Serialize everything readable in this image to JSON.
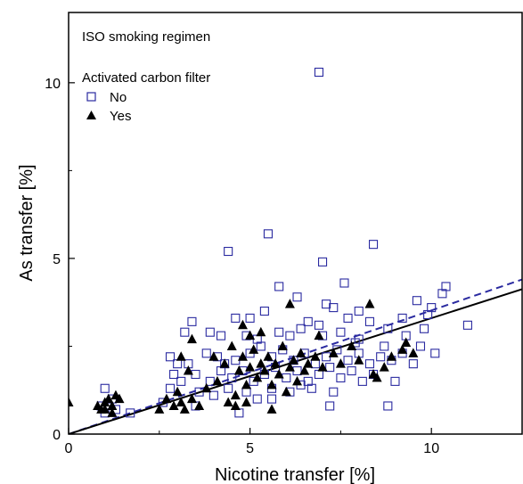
{
  "chart_data": {
    "type": "scatter",
    "xlabel": "Nicotine transfer [%]",
    "ylabel": "As transfer [%]",
    "xlim": [
      0,
      12.5
    ],
    "ylim": [
      0,
      12
    ],
    "x_ticks": [
      0,
      5,
      10
    ],
    "y_ticks": [
      0,
      5,
      10
    ],
    "x_tick_labels": [
      "0",
      "5",
      "10"
    ],
    "y_tick_labels": [
      "0",
      "5",
      "10"
    ],
    "grid": false,
    "legend_position": "top-left",
    "annotation": "ISO smoking regimen",
    "legend_title": "Activated carbon filter",
    "series": [
      {
        "name": "No",
        "marker": "open-square",
        "color": "#2a2aa0",
        "points": [
          [
            6.9,
            10.3
          ],
          [
            8.4,
            5.4
          ],
          [
            5.5,
            5.7
          ],
          [
            4.4,
            5.2
          ],
          [
            7.0,
            4.9
          ],
          [
            5.8,
            4.2
          ],
          [
            7.6,
            4.3
          ],
          [
            10.4,
            4.2
          ],
          [
            10.3,
            4.0
          ],
          [
            9.6,
            3.8
          ],
          [
            6.3,
            3.9
          ],
          [
            7.1,
            3.7
          ],
          [
            8.0,
            3.5
          ],
          [
            7.3,
            3.6
          ],
          [
            5.4,
            3.5
          ],
          [
            5.0,
            3.3
          ],
          [
            4.6,
            3.3
          ],
          [
            3.4,
            3.2
          ],
          [
            6.6,
            3.2
          ],
          [
            6.9,
            3.1
          ],
          [
            7.7,
            3.3
          ],
          [
            8.3,
            3.2
          ],
          [
            9.2,
            3.3
          ],
          [
            9.9,
            3.4
          ],
          [
            10.0,
            3.6
          ],
          [
            11.0,
            3.1
          ],
          [
            9.8,
            3.0
          ],
          [
            3.2,
            2.9
          ],
          [
            3.9,
            2.9
          ],
          [
            4.2,
            2.8
          ],
          [
            4.9,
            2.8
          ],
          [
            5.2,
            2.7
          ],
          [
            5.8,
            2.9
          ],
          [
            6.1,
            2.8
          ],
          [
            6.4,
            3.0
          ],
          [
            7.0,
            2.8
          ],
          [
            7.5,
            2.9
          ],
          [
            8.0,
            2.7
          ],
          [
            8.8,
            3.0
          ],
          [
            9.3,
            2.8
          ],
          [
            9.7,
            2.5
          ],
          [
            10.1,
            2.3
          ],
          [
            2.8,
            2.2
          ],
          [
            3.0,
            2.0
          ],
          [
            3.3,
            2.0
          ],
          [
            3.8,
            2.3
          ],
          [
            4.1,
            2.2
          ],
          [
            4.3,
            2.0
          ],
          [
            4.6,
            2.1
          ],
          [
            5.0,
            2.3
          ],
          [
            5.3,
            2.5
          ],
          [
            5.6,
            2.2
          ],
          [
            5.9,
            2.4
          ],
          [
            6.2,
            2.1
          ],
          [
            6.5,
            2.3
          ],
          [
            6.8,
            2.0
          ],
          [
            7.1,
            2.2
          ],
          [
            7.4,
            2.4
          ],
          [
            7.7,
            2.1
          ],
          [
            8.0,
            2.3
          ],
          [
            8.3,
            2.0
          ],
          [
            8.6,
            2.2
          ],
          [
            8.9,
            2.1
          ],
          [
            9.2,
            2.3
          ],
          [
            9.5,
            2.0
          ],
          [
            2.9,
            1.7
          ],
          [
            3.1,
            1.5
          ],
          [
            3.5,
            1.7
          ],
          [
            3.9,
            1.5
          ],
          [
            4.2,
            1.8
          ],
          [
            4.5,
            1.6
          ],
          [
            4.8,
            1.8
          ],
          [
            5.1,
            1.5
          ],
          [
            5.4,
            1.7
          ],
          [
            5.7,
            1.9
          ],
          [
            6.0,
            1.6
          ],
          [
            6.3,
            1.8
          ],
          [
            6.6,
            1.5
          ],
          [
            6.9,
            1.7
          ],
          [
            7.2,
            1.9
          ],
          [
            7.5,
            1.6
          ],
          [
            7.8,
            1.8
          ],
          [
            8.1,
            1.5
          ],
          [
            8.4,
            1.7
          ],
          [
            2.8,
            1.3
          ],
          [
            3.6,
            1.2
          ],
          [
            4.0,
            1.1
          ],
          [
            4.4,
            1.3
          ],
          [
            4.9,
            1.2
          ],
          [
            5.2,
            1.0
          ],
          [
            5.6,
            1.3
          ],
          [
            6.1,
            1.2
          ],
          [
            6.7,
            1.3
          ],
          [
            7.3,
            1.2
          ],
          [
            9.0,
            1.5
          ],
          [
            1.0,
            1.3
          ],
          [
            1.2,
            1.0
          ],
          [
            0.9,
            0.8
          ],
          [
            1.3,
            0.7
          ],
          [
            1.0,
            0.6
          ],
          [
            1.7,
            0.6
          ],
          [
            3.5,
            0.8
          ],
          [
            7.2,
            0.8
          ],
          [
            8.8,
            0.8
          ],
          [
            2.6,
            0.9
          ],
          [
            4.7,
            0.6
          ],
          [
            5.6,
            1.0
          ],
          [
            6.4,
            1.4
          ],
          [
            7.9,
            2.6
          ],
          [
            8.7,
            2.5
          ]
        ]
      },
      {
        "name": "Yes",
        "marker": "filled-triangle",
        "color": "#000000",
        "points": [
          [
            0.0,
            0.9
          ],
          [
            0.8,
            0.8
          ],
          [
            0.9,
            0.7
          ],
          [
            1.0,
            0.9
          ],
          [
            1.1,
            1.0
          ],
          [
            1.2,
            0.8
          ],
          [
            1.3,
            1.1
          ],
          [
            1.4,
            1.0
          ],
          [
            1.2,
            0.6
          ],
          [
            1.0,
            0.7
          ],
          [
            2.5,
            0.7
          ],
          [
            2.7,
            1.0
          ],
          [
            2.9,
            0.8
          ],
          [
            3.0,
            1.2
          ],
          [
            3.1,
            0.9
          ],
          [
            3.2,
            0.7
          ],
          [
            3.4,
            1.0
          ],
          [
            3.6,
            0.8
          ],
          [
            3.1,
            2.2
          ],
          [
            3.3,
            1.8
          ],
          [
            3.4,
            2.7
          ],
          [
            3.8,
            1.3
          ],
          [
            4.0,
            2.2
          ],
          [
            4.1,
            1.5
          ],
          [
            4.3,
            2.0
          ],
          [
            4.4,
            0.9
          ],
          [
            4.5,
            2.5
          ],
          [
            4.6,
            1.1
          ],
          [
            4.6,
            0.8
          ],
          [
            4.7,
            1.8
          ],
          [
            4.8,
            2.2
          ],
          [
            4.8,
            3.1
          ],
          [
            4.9,
            1.4
          ],
          [
            4.9,
            0.9
          ],
          [
            5.0,
            1.9
          ],
          [
            5.0,
            2.8
          ],
          [
            5.1,
            2.4
          ],
          [
            5.2,
            1.6
          ],
          [
            5.3,
            2.0
          ],
          [
            5.3,
            2.9
          ],
          [
            5.4,
            1.8
          ],
          [
            5.5,
            2.2
          ],
          [
            5.6,
            1.4
          ],
          [
            5.6,
            0.7
          ],
          [
            5.7,
            2.0
          ],
          [
            5.8,
            1.7
          ],
          [
            5.9,
            2.5
          ],
          [
            6.0,
            1.2
          ],
          [
            6.1,
            1.9
          ],
          [
            6.1,
            3.7
          ],
          [
            6.2,
            2.1
          ],
          [
            6.3,
            1.5
          ],
          [
            6.4,
            2.3
          ],
          [
            6.5,
            1.8
          ],
          [
            6.6,
            2.0
          ],
          [
            6.8,
            2.2
          ],
          [
            6.9,
            2.8
          ],
          [
            7.0,
            1.9
          ],
          [
            7.3,
            2.3
          ],
          [
            7.5,
            2.0
          ],
          [
            7.8,
            2.5
          ],
          [
            8.0,
            2.1
          ],
          [
            8.3,
            3.7
          ],
          [
            8.4,
            1.7
          ],
          [
            8.5,
            1.6
          ],
          [
            8.9,
            2.2
          ],
          [
            9.2,
            2.4
          ],
          [
            9.5,
            2.3
          ],
          [
            9.3,
            2.6
          ],
          [
            8.7,
            1.9
          ]
        ]
      }
    ],
    "fit_lines": [
      {
        "style": "dashed",
        "color": "#2a2aa0",
        "intercept": 0.0,
        "slope": 0.352
      },
      {
        "style": "solid",
        "color": "#000000",
        "intercept": 0.0,
        "slope": 0.33
      }
    ]
  }
}
